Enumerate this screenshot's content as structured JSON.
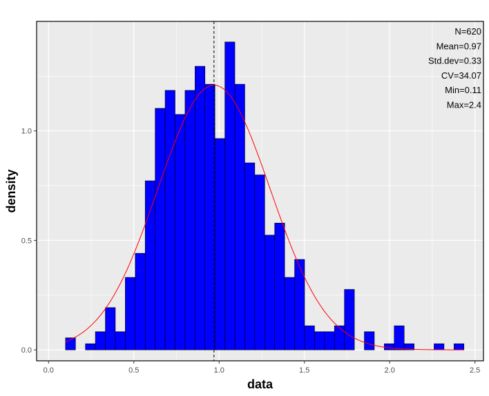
{
  "chart_data": {
    "type": "bar",
    "xlabel": "data",
    "ylabel": "density",
    "xlim": [
      -0.07,
      2.55
    ],
    "ylim": [
      -0.05,
      1.5
    ],
    "x_ticks": [
      0.0,
      0.5,
      1.0,
      1.5,
      2.0,
      2.5
    ],
    "x_tick_labels": [
      "0.0",
      "0.5",
      "1.0",
      "1.5",
      "2.0",
      "2.5"
    ],
    "y_ticks": [
      0.0,
      0.5,
      1.0
    ],
    "y_tick_labels": [
      "0.0",
      "0.5",
      "1.0"
    ],
    "bin_width": 0.0584,
    "bins_start": [
      0.0995,
      0.1579,
      0.2163,
      0.2747,
      0.3331,
      0.3915,
      0.4499,
      0.5083,
      0.5667,
      0.6251,
      0.6835,
      0.7419,
      0.8003,
      0.8587,
      0.9171,
      0.9755,
      1.0339,
      1.0923,
      1.1507,
      1.2091,
      1.2675,
      1.3259,
      1.3843,
      1.4427,
      1.5011,
      1.5595,
      1.6179,
      1.6763,
      1.7347,
      1.7931,
      1.8515,
      1.9099,
      1.9683,
      2.0267,
      2.0851,
      2.1435,
      2.2019,
      2.2603,
      2.3187,
      2.3771
    ],
    "density": [
      0.055,
      0.0,
      0.028,
      0.083,
      0.193,
      0.083,
      0.331,
      0.441,
      0.772,
      1.103,
      1.185,
      1.075,
      1.185,
      1.295,
      1.213,
      0.965,
      1.406,
      1.213,
      0.854,
      0.799,
      0.524,
      0.579,
      0.331,
      0.413,
      0.11,
      0.083,
      0.083,
      0.11,
      0.276,
      0.0,
      0.083,
      0.0,
      0.028,
      0.11,
      0.028,
      0.0,
      0.0,
      0.028,
      0.0,
      0.028
    ],
    "bar_fill": "#0000ff",
    "bar_stroke": "#000000",
    "normal_curve": {
      "mean": 0.97,
      "sd": 0.33,
      "color": "#ff0000"
    },
    "mean_line": {
      "x": 0.97,
      "style": "dashed",
      "color": "#000000"
    },
    "stats": [
      "N=620",
      "Mean=0.97",
      "Std.dev=0.33",
      "CV=34.07",
      "Min=0.11",
      "Max=2.4"
    ],
    "panel_background": "#ebebeb",
    "grid": true,
    "grid_color": "#ffffff"
  }
}
